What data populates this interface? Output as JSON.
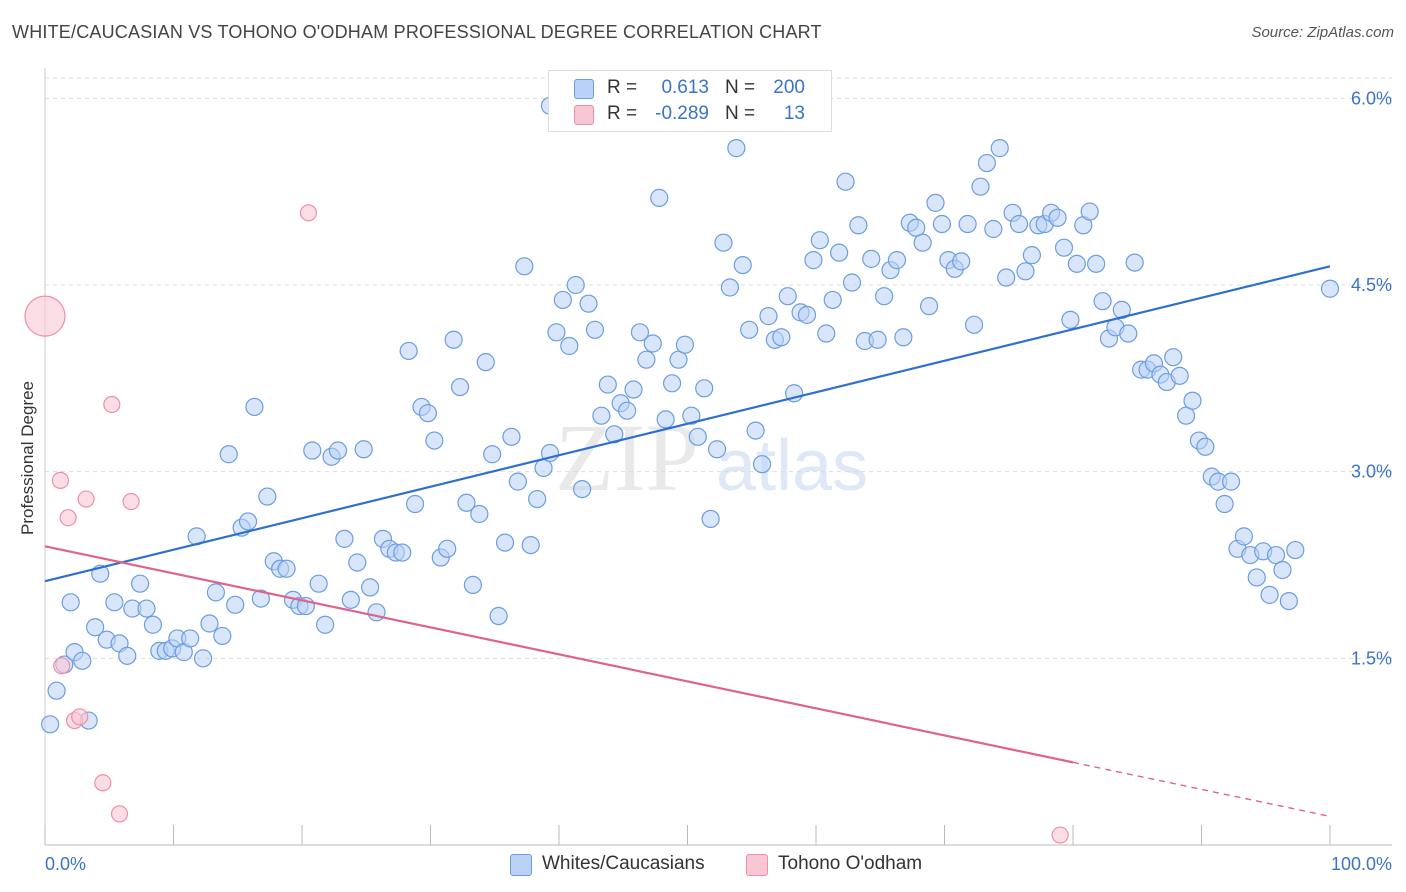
{
  "title": "WHITE/CAUCASIAN VS TOHONO O'ODHAM PROFESSIONAL DEGREE CORRELATION CHART",
  "source": "Source: ZipAtlas.com",
  "watermark": {
    "zip": "ZIP",
    "atlas": "atlas"
  },
  "colors": {
    "blue_fill": "#b9d2f5",
    "blue_stroke": "#6b9de0",
    "blue_line": "#2f6fd0",
    "pink_fill": "#f9c6d4",
    "pink_stroke": "#ee8fa8",
    "pink_line": "#e0628e",
    "tick_label": "#3a74c8",
    "grid": "#dcdcdc"
  },
  "legend": {
    "rows": [
      {
        "r_label": "R =",
        "r_value": "0.613",
        "n_label": "N =",
        "n_value": "200"
      },
      {
        "r_label": "R =",
        "r_value": "-0.289",
        "n_label": "N =",
        "n_value": "13"
      }
    ]
  },
  "bottom_legend": {
    "items": [
      "Whites/Caucasians",
      "Tohono O'odham"
    ]
  },
  "chart_data": {
    "type": "scatter",
    "title": "WHITE/CAUCASIAN VS TOHONO O'ODHAM PROFESSIONAL DEGREE CORRELATION CHART",
    "xlabel": "",
    "ylabel": "Professional Degree",
    "xlim": [
      0,
      100
    ],
    "ylim": [
      0,
      6.3
    ],
    "x_tick_labels": [
      "0.0%",
      "100.0%"
    ],
    "y_ticks": [
      1.5,
      3.0,
      4.5,
      6.0
    ],
    "y_tick_labels": [
      "1.5%",
      "3.0%",
      "4.5%",
      "6.0%"
    ],
    "grid": true,
    "legend_position": "top-center",
    "series": [
      {
        "name": "Whites/Caucasians",
        "color": "#6b9de0",
        "r": 0.613,
        "n": 200,
        "trend": {
          "x0": 0,
          "y0": 2.12,
          "x1": 100,
          "y1": 4.65,
          "solid_until": 100
        },
        "points": [
          [
            0.4,
            0.97
          ],
          [
            0.9,
            1.24
          ],
          [
            1.5,
            1.45
          ],
          [
            2,
            1.95
          ],
          [
            2.3,
            1.55
          ],
          [
            2.9,
            1.48
          ],
          [
            3.4,
            1
          ],
          [
            3.9,
            1.75
          ],
          [
            4.3,
            2.18
          ],
          [
            4.8,
            1.65
          ],
          [
            5.4,
            1.95
          ],
          [
            5.8,
            1.62
          ],
          [
            6.4,
            1.52
          ],
          [
            6.8,
            1.9
          ],
          [
            7.4,
            2.1
          ],
          [
            7.9,
            1.9
          ],
          [
            8.4,
            1.77
          ],
          [
            8.9,
            1.56
          ],
          [
            9.4,
            1.56
          ],
          [
            9.9,
            1.58
          ],
          [
            10.3,
            1.66
          ],
          [
            10.8,
            1.55
          ],
          [
            11.3,
            1.66
          ],
          [
            11.8,
            2.48
          ],
          [
            12.3,
            1.5
          ],
          [
            12.8,
            1.78
          ],
          [
            13.3,
            2.03
          ],
          [
            13.8,
            1.68
          ],
          [
            14.3,
            3.14
          ],
          [
            14.8,
            1.93
          ],
          [
            15.3,
            2.55
          ],
          [
            15.8,
            2.6
          ],
          [
            16.3,
            3.52
          ],
          [
            16.8,
            1.98
          ],
          [
            17.3,
            2.8
          ],
          [
            17.8,
            2.28
          ],
          [
            18.3,
            2.22
          ],
          [
            18.8,
            2.22
          ],
          [
            19.3,
            1.97
          ],
          [
            19.8,
            1.92
          ],
          [
            20.3,
            1.92
          ],
          [
            20.8,
            3.17
          ],
          [
            21.3,
            2.1
          ],
          [
            21.8,
            1.77
          ],
          [
            22.3,
            3.12
          ],
          [
            22.8,
            3.17
          ],
          [
            23.3,
            2.46
          ],
          [
            23.8,
            1.97
          ],
          [
            24.3,
            2.27
          ],
          [
            24.8,
            3.18
          ],
          [
            25.3,
            2.07
          ],
          [
            25.8,
            1.87
          ],
          [
            26.3,
            2.46
          ],
          [
            26.8,
            2.38
          ],
          [
            27.3,
            2.35
          ],
          [
            27.8,
            2.35
          ],
          [
            28.3,
            3.97
          ],
          [
            28.8,
            2.74
          ],
          [
            29.3,
            3.52
          ],
          [
            29.8,
            3.47
          ],
          [
            30.3,
            3.25
          ],
          [
            30.8,
            2.31
          ],
          [
            31.3,
            2.38
          ],
          [
            31.8,
            4.06
          ],
          [
            32.3,
            3.68
          ],
          [
            32.8,
            2.75
          ],
          [
            33.3,
            2.09
          ],
          [
            33.8,
            2.66
          ],
          [
            34.3,
            3.88
          ],
          [
            34.8,
            3.14
          ],
          [
            35.3,
            1.84
          ],
          [
            35.8,
            2.43
          ],
          [
            36.3,
            3.28
          ],
          [
            36.8,
            2.92
          ],
          [
            37.3,
            4.65
          ],
          [
            37.8,
            2.41
          ],
          [
            38.3,
            2.78
          ],
          [
            38.8,
            3.03
          ],
          [
            39.3,
            3.15
          ],
          [
            39.8,
            4.12
          ],
          [
            40.3,
            4.38
          ],
          [
            40.8,
            4.01
          ],
          [
            41.3,
            4.5
          ],
          [
            41.8,
            2.86
          ],
          [
            42.3,
            4.35
          ],
          [
            42.8,
            4.14
          ],
          [
            43.3,
            3.45
          ],
          [
            43.8,
            3.7
          ],
          [
            44.3,
            3.3
          ],
          [
            44.8,
            3.55
          ],
          [
            45.3,
            3.49
          ],
          [
            45.8,
            3.66
          ],
          [
            46.3,
            4.12
          ],
          [
            46.8,
            3.9
          ],
          [
            47.3,
            4.03
          ],
          [
            47.8,
            5.2
          ],
          [
            48.3,
            3.42
          ],
          [
            48.8,
            3.71
          ],
          [
            49.3,
            3.9
          ],
          [
            49.8,
            4.02
          ],
          [
            50.3,
            3.45
          ],
          [
            50.8,
            3.28
          ],
          [
            51.3,
            3.67
          ],
          [
            51.8,
            2.62
          ],
          [
            52.3,
            3.18
          ],
          [
            52.8,
            4.84
          ],
          [
            53.3,
            4.48
          ],
          [
            53.8,
            5.6
          ],
          [
            54.3,
            4.66
          ],
          [
            54.8,
            4.14
          ],
          [
            55.3,
            3.33
          ],
          [
            55.8,
            3.06
          ],
          [
            56.3,
            4.25
          ],
          [
            56.8,
            4.06
          ],
          [
            57.3,
            4.08
          ],
          [
            57.8,
            4.41
          ],
          [
            58.3,
            3.63
          ],
          [
            58.8,
            4.28
          ],
          [
            59.3,
            4.26
          ],
          [
            59.8,
            4.7
          ],
          [
            60.3,
            4.86
          ],
          [
            60.8,
            4.11
          ],
          [
            61.3,
            4.38
          ],
          [
            61.8,
            4.76
          ],
          [
            62.3,
            5.33
          ],
          [
            62.8,
            4.52
          ],
          [
            63.3,
            4.98
          ],
          [
            63.8,
            4.05
          ],
          [
            64.3,
            4.71
          ],
          [
            64.8,
            4.06
          ],
          [
            65.3,
            4.41
          ],
          [
            65.8,
            4.62
          ],
          [
            66.3,
            4.7
          ],
          [
            66.8,
            4.08
          ],
          [
            67.3,
            5.0
          ],
          [
            67.8,
            4.96
          ],
          [
            68.3,
            4.84
          ],
          [
            68.8,
            4.33
          ],
          [
            69.3,
            5.16
          ],
          [
            69.8,
            4.99
          ],
          [
            70.3,
            4.7
          ],
          [
            70.8,
            4.63
          ],
          [
            71.3,
            4.69
          ],
          [
            71.8,
            4.99
          ],
          [
            72.3,
            4.18
          ],
          [
            72.8,
            5.29
          ],
          [
            73.3,
            5.48
          ],
          [
            73.8,
            4.95
          ],
          [
            74.3,
            5.6
          ],
          [
            74.8,
            4.56
          ],
          [
            75.3,
            5.08
          ],
          [
            75.8,
            4.99
          ],
          [
            76.3,
            4.61
          ],
          [
            76.8,
            4.74
          ],
          [
            77.3,
            4.98
          ],
          [
            77.8,
            4.99
          ],
          [
            78.3,
            5.08
          ],
          [
            78.8,
            5.04
          ],
          [
            79.3,
            4.8
          ],
          [
            79.8,
            4.22
          ],
          [
            80.3,
            4.67
          ],
          [
            80.8,
            4.98
          ],
          [
            81.3,
            5.09
          ],
          [
            81.8,
            4.67
          ],
          [
            82.3,
            4.37
          ],
          [
            82.8,
            4.07
          ],
          [
            83.3,
            4.16
          ],
          [
            83.8,
            4.3
          ],
          [
            84.3,
            4.11
          ],
          [
            84.8,
            4.68
          ],
          [
            85.3,
            3.82
          ],
          [
            85.8,
            3.82
          ],
          [
            86.3,
            3.87
          ],
          [
            86.8,
            3.78
          ],
          [
            87.3,
            3.72
          ],
          [
            87.8,
            3.92
          ],
          [
            88.3,
            3.77
          ],
          [
            88.8,
            3.45
          ],
          [
            89.3,
            3.57
          ],
          [
            89.8,
            3.25
          ],
          [
            90.3,
            3.2
          ],
          [
            90.8,
            2.96
          ],
          [
            91.3,
            2.92
          ],
          [
            91.8,
            2.74
          ],
          [
            92.3,
            2.92
          ],
          [
            92.8,
            2.38
          ],
          [
            93.3,
            2.48
          ],
          [
            93.8,
            2.33
          ],
          [
            94.3,
            2.15
          ],
          [
            94.8,
            2.36
          ],
          [
            95.3,
            2.01
          ],
          [
            95.8,
            2.33
          ],
          [
            96.3,
            2.21
          ],
          [
            96.8,
            1.96
          ],
          [
            97.3,
            2.37
          ],
          [
            100,
            4.47
          ],
          [
            39.3,
            5.94
          ]
        ]
      },
      {
        "name": "Tohono O'odham",
        "color": "#ee8fa8",
        "r": -0.289,
        "n": 13,
        "trend": {
          "x0": 0,
          "y0": 2.4,
          "x1": 100,
          "y1": 0.23,
          "solid_until": 80
        },
        "points": [
          [
            0,
            4.25
          ],
          [
            1.2,
            2.93
          ],
          [
            1.3,
            1.44
          ],
          [
            1.8,
            2.63
          ],
          [
            2.3,
            1.0
          ],
          [
            2.7,
            1.03
          ],
          [
            3.2,
            2.78
          ],
          [
            4.5,
            0.5
          ],
          [
            5.2,
            3.54
          ],
          [
            5.8,
            0.25
          ],
          [
            6.7,
            2.76
          ],
          [
            20.5,
            5.08
          ],
          [
            79,
            0.08
          ]
        ]
      }
    ]
  }
}
